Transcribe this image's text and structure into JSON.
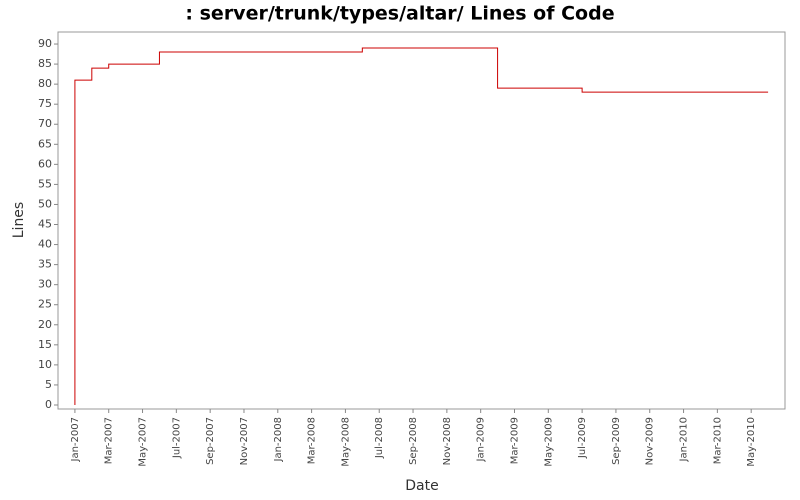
{
  "chart_data": {
    "type": "line",
    "step": true,
    "title": ": server/trunk/types/altar/ Lines of Code",
    "x_label": "Date",
    "y_label": "Lines",
    "x": [
      "2007-01",
      "2007-01",
      "2007-02",
      "2007-03",
      "2007-06",
      "2008-06",
      "2009-02",
      "2009-07",
      "2010-06"
    ],
    "values": [
      0,
      81,
      84,
      85,
      88,
      89,
      79,
      78,
      78
    ],
    "color": "#cc0000",
    "xlim": [
      "2006-12",
      "2010-07"
    ],
    "xticks": [
      {
        "value": "2007-01",
        "label": "Jan-2007"
      },
      {
        "value": "2007-03",
        "label": "Mar-2007"
      },
      {
        "value": "2007-05",
        "label": "May-2007"
      },
      {
        "value": "2007-07",
        "label": "Jul-2007"
      },
      {
        "value": "2007-09",
        "label": "Sep-2007"
      },
      {
        "value": "2007-11",
        "label": "Nov-2007"
      },
      {
        "value": "2008-01",
        "label": "Jan-2008"
      },
      {
        "value": "2008-03",
        "label": "Mar-2008"
      },
      {
        "value": "2008-05",
        "label": "May-2008"
      },
      {
        "value": "2008-07",
        "label": "Jul-2008"
      },
      {
        "value": "2008-09",
        "label": "Sep-2008"
      },
      {
        "value": "2008-11",
        "label": "Nov-2008"
      },
      {
        "value": "2009-01",
        "label": "Jan-2009"
      },
      {
        "value": "2009-03",
        "label": "Mar-2009"
      },
      {
        "value": "2009-05",
        "label": "May-2009"
      },
      {
        "value": "2009-07",
        "label": "Jul-2009"
      },
      {
        "value": "2009-09",
        "label": "Sep-2009"
      },
      {
        "value": "2009-11",
        "label": "Nov-2009"
      },
      {
        "value": "2010-01",
        "label": "Jan-2010"
      },
      {
        "value": "2010-03",
        "label": "Mar-2010"
      },
      {
        "value": "2010-05",
        "label": "May-2010"
      }
    ],
    "ylim": [
      -1,
      93
    ],
    "yticks": [
      0,
      5,
      10,
      15,
      20,
      25,
      30,
      35,
      40,
      45,
      50,
      55,
      60,
      65,
      70,
      75,
      80,
      85,
      90
    ],
    "grid": false
  }
}
